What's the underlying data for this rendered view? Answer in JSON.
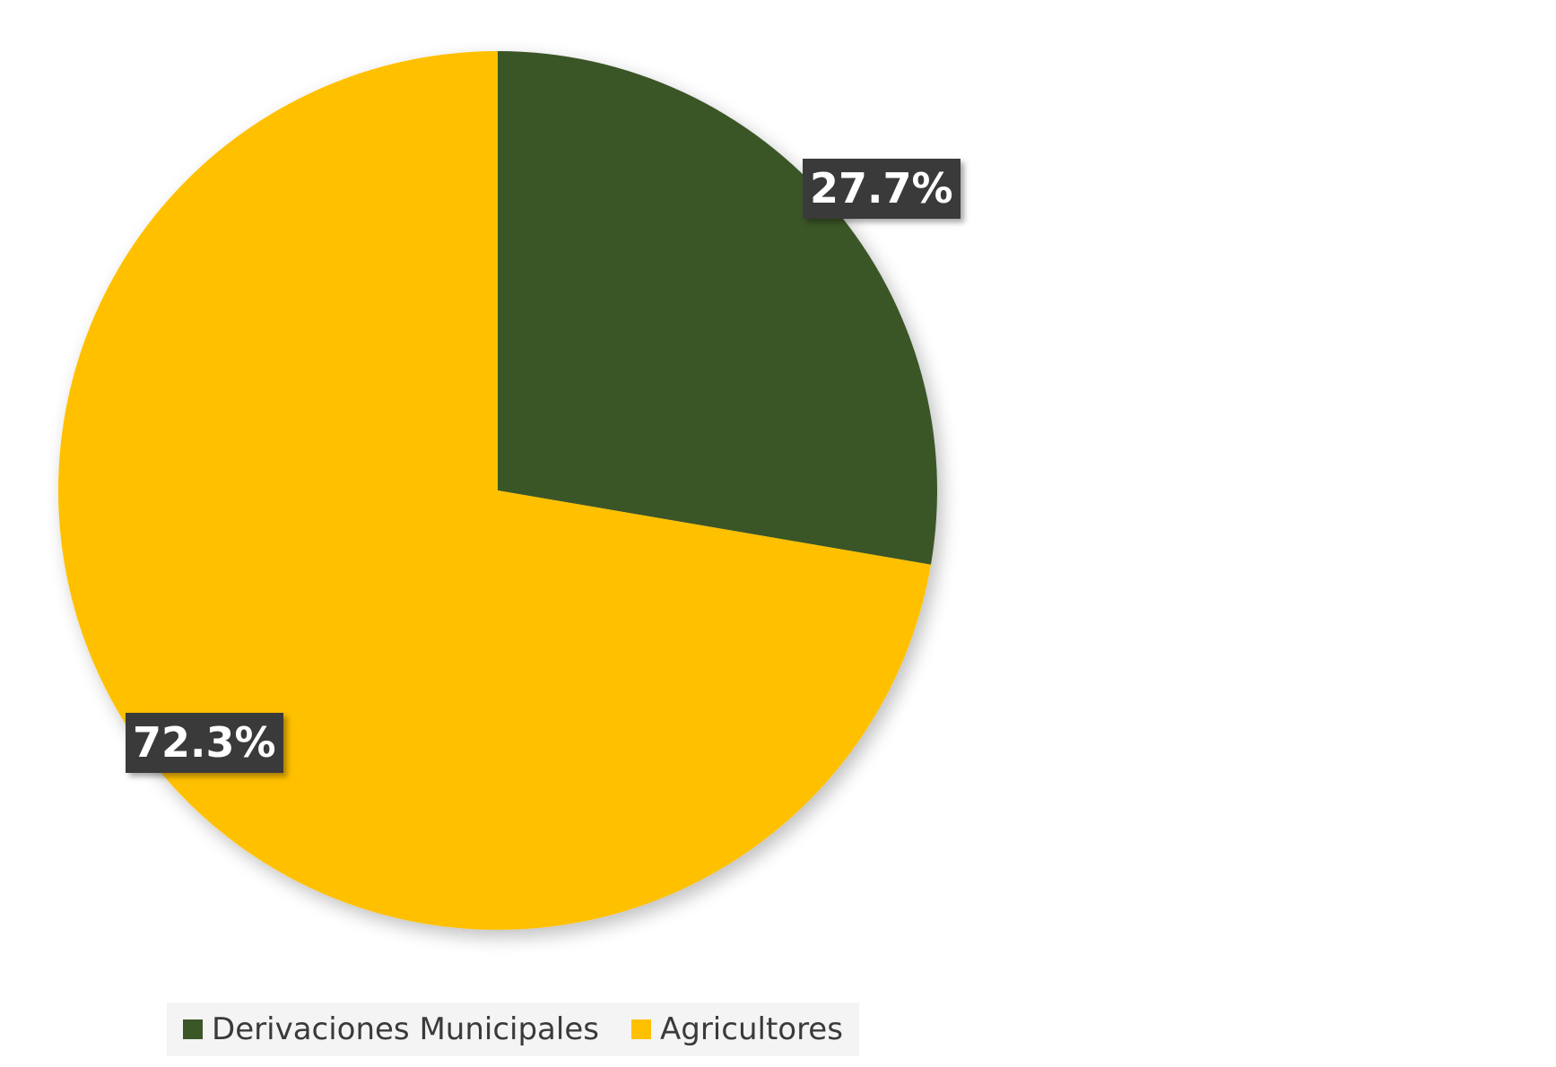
{
  "chart_data": {
    "type": "pie",
    "series": [
      {
        "name": "Derivaciones Municipales",
        "value": 27.7,
        "label": "27.7%",
        "color": "#3b5727"
      },
      {
        "name": "Agricultores",
        "value": 72.3,
        "label": "72.3%",
        "color": "#ffc000"
      }
    ],
    "start_angle": "12 o'clock",
    "direction": "clockwise",
    "legend": "bottom"
  }
}
